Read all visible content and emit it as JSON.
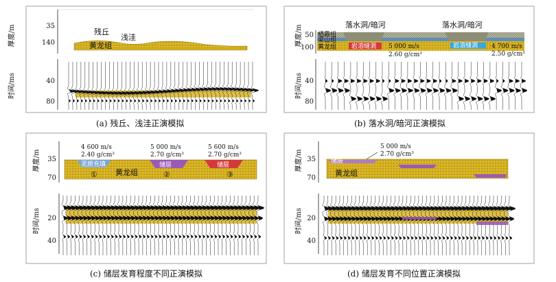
{
  "colors": {
    "gold": "#d9b526",
    "gold_dark": "#a6860f",
    "red": "#d43a3a",
    "purple": "#9b59b6",
    "cyan": "#3aa8d8",
    "gray_lith": "#9c9c84",
    "wave": "#111111"
  },
  "axes": {
    "thickness": "厚度/m",
    "time": "时间/ms"
  },
  "panel_a": {
    "caption": "(a) 残丘、浅洼正演模拟",
    "depth_ticks": [
      "35",
      "140"
    ],
    "time_ticks": [
      "40",
      "80"
    ],
    "labels": {
      "hill": "残丘",
      "pond": "浅洼",
      "formation": "黄龙组"
    }
  },
  "panel_b": {
    "caption": "(b) 落水洞/暗河正演模拟",
    "depth_ticks": [
      "50",
      "100"
    ],
    "time_ticks": [
      "40",
      "80"
    ],
    "labels": {
      "top_left": "落水洞/暗河",
      "top_right": "落水洞/暗河",
      "qixia": "栖霞组",
      "liangshan": "梁山组",
      "formation": "黄龙组",
      "cave_fill": "岩溶缝洞",
      "cave_fill_2": "岩溶缝洞",
      "v1": "5 000 m/s",
      "d1": "2.60 g/cm³",
      "v2": "4 700 m/s",
      "d2": "2.50 g/cm³"
    }
  },
  "panel_c": {
    "caption": "(c) 储层发育程度不同正演模拟",
    "depth_ticks": [
      "35",
      "70"
    ],
    "time_ticks": [
      "20",
      "40"
    ],
    "labels": {
      "formation": "黄龙组",
      "mud": "泥质充填",
      "res1": "储层",
      "res2": "储层",
      "n1": "①",
      "n2": "②",
      "n3": "③",
      "v1": "4 600 m/s",
      "d1": "2.40 g/cm³",
      "v2": "5 000 m/s",
      "d2": "2.70 g/cm³",
      "v3": "5 600 m/s",
      "d3": "2.70 g/cm³"
    }
  },
  "panel_d": {
    "caption": "(d) 储层发育不同位置正演模拟",
    "depth_ticks": [
      "35",
      "70"
    ],
    "time_ticks": [
      "20",
      "40"
    ],
    "labels": {
      "formation": "黄龙组",
      "res": "储层",
      "v": "5 000 m/s",
      "d": "2.70 g/cm³"
    }
  }
}
